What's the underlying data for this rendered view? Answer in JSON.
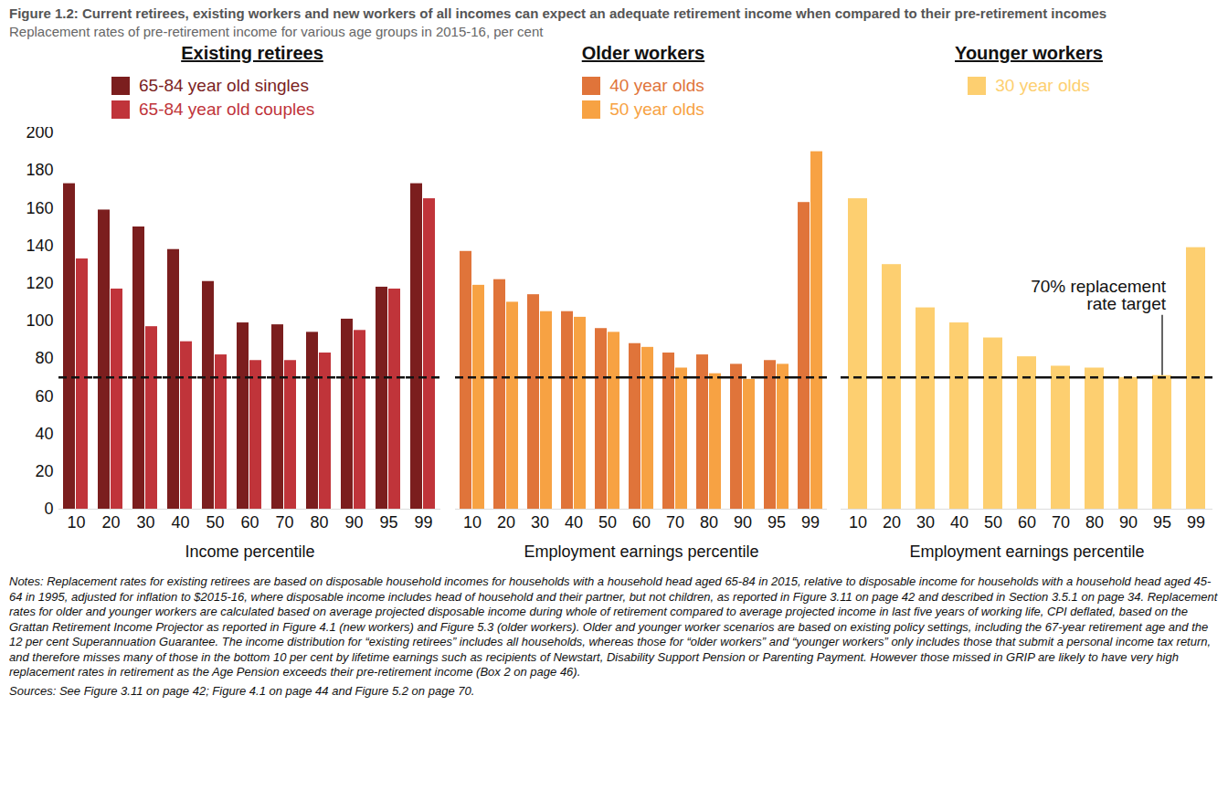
{
  "title": "Figure 1.2: Current retirees, existing workers and new workers of all incomes can expect an adequate retirement income when compared to their pre-retirement incomes",
  "subtitle": "Replacement rates of pre-retirement income for various age groups in 2015-16, per cent",
  "target": {
    "value": 70,
    "label": "70% replacement\nrate target"
  },
  "notes": "Notes: Replacement rates for existing retirees are based on disposable household incomes for households with a household head aged 65-84 in 2015, relative to disposable income for households with a household head aged 45-64 in 1995, adjusted for inflation to $2015-16, where disposable income includes head of household and their partner, but not children, as reported in Figure 3.11 on page 42 and described in Section 3.5.1 on page 34. Replacement rates for older and younger workers are calculated based on average projected disposable income during whole of retirement compared to average projected income in last five years of working life, CPI deflated, based on the Grattan Retirement Income Projector as reported in Figure 4.1 (new workers) and Figure 5.3 (older workers). Older and younger worker scenarios are based on existing policy settings, including the 67-year retirement age and the 12 per cent Superannuation Guarantee. The income distribution for “existing retirees” includes all households, whereas those for “older workers” and “younger workers” only includes those that submit a personal income tax return, and therefore misses many of those in the bottom 10 per cent by lifetime earnings such as recipients of Newstart, Disability Support Pension or Parenting Payment. However those missed in GRIP are likely to have very high replacement rates in retirement as the Age Pension exceeds their pre-retirement income (Box 2 on page 46).",
  "sources": "Sources: See Figure 3.11 on page 42; Figure 4.1 on page 44 and Figure 5.2 on page 70.",
  "chart_data": [
    {
      "type": "bar",
      "title": "Existing retirees",
      "x_label": "Income percentile",
      "categories": [
        "10",
        "20",
        "30",
        "40",
        "50",
        "60",
        "70",
        "80",
        "90",
        "95",
        "99"
      ],
      "series": [
        {
          "name": "65-84 year old singles",
          "color": "#7b1e1e",
          "values": [
            173,
            159,
            150,
            138,
            121,
            99,
            98,
            94,
            101,
            118,
            173
          ]
        },
        {
          "name": "65-84 year old couples",
          "color": "#c0343a",
          "values": [
            133,
            117,
            97,
            89,
            82,
            79,
            79,
            83,
            95,
            117,
            165
          ]
        }
      ],
      "ylim": [
        0,
        200
      ],
      "yticks": [
        0,
        20,
        40,
        60,
        80,
        100,
        120,
        140,
        160,
        180,
        200
      ],
      "grid": false,
      "legend": "top-left"
    },
    {
      "type": "bar",
      "title": "Older workers",
      "x_label": "Employment earnings percentile",
      "categories": [
        "10",
        "20",
        "30",
        "40",
        "50",
        "60",
        "70",
        "80",
        "90",
        "95",
        "99"
      ],
      "series": [
        {
          "name": "40 year olds",
          "color": "#e0743a",
          "values": [
            137,
            122,
            114,
            105,
            96,
            88,
            83,
            82,
            77,
            79,
            163
          ]
        },
        {
          "name": "50 year olds",
          "color": "#f7a243",
          "values": [
            119,
            110,
            105,
            102,
            94,
            86,
            75,
            72,
            69,
            77,
            190
          ]
        }
      ],
      "ylim": [
        0,
        200
      ],
      "tick_labels": "x",
      "grid": false,
      "legend": "top"
    },
    {
      "type": "bar",
      "title": "Younger workers",
      "x_label": "Employment earnings percentile",
      "categories": [
        "10",
        "20",
        "30",
        "40",
        "50",
        "60",
        "70",
        "80",
        "90",
        "95",
        "99"
      ],
      "series": [
        {
          "name": "30 year olds",
          "color": "#fdcf70",
          "values": [
            165,
            130,
            107,
            99,
            91,
            81,
            76,
            75,
            70,
            71,
            139
          ]
        }
      ],
      "ylim": [
        0,
        200
      ],
      "tick_labels": "x",
      "grid": false,
      "legend": "top"
    }
  ]
}
